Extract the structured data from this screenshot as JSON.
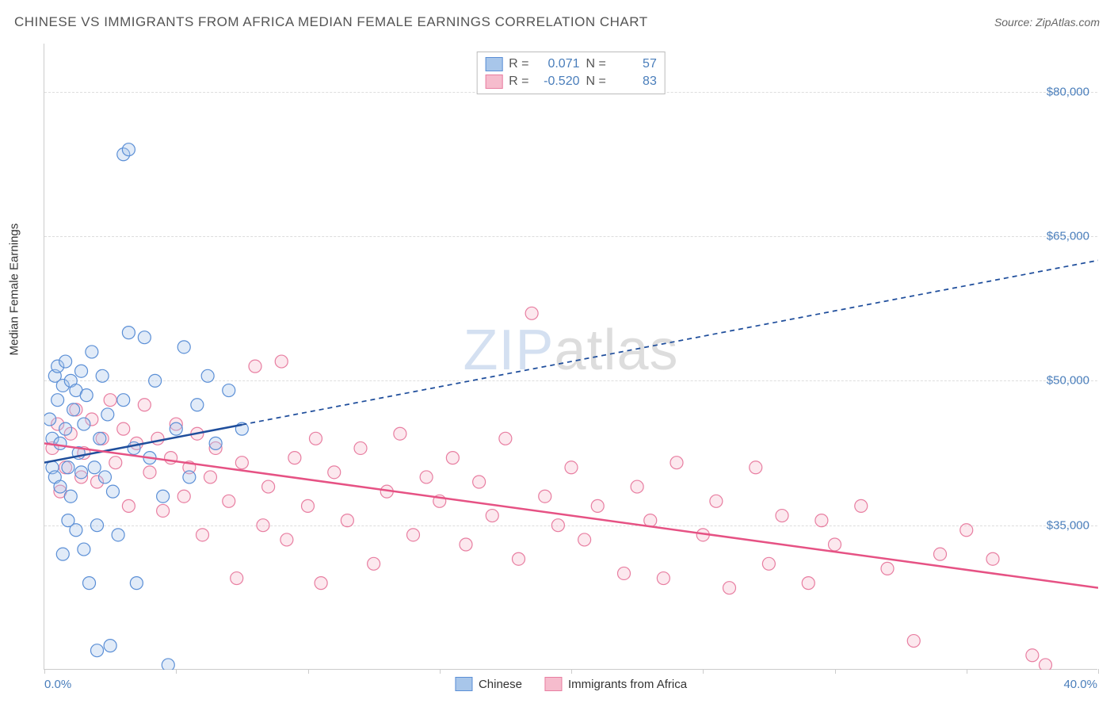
{
  "header": {
    "title": "CHINESE VS IMMIGRANTS FROM AFRICA MEDIAN FEMALE EARNINGS CORRELATION CHART",
    "source": "Source: ZipAtlas.com"
  },
  "axes": {
    "y_title": "Median Female Earnings",
    "x_min_label": "0.0%",
    "x_max_label": "40.0%",
    "xlim": [
      0,
      40
    ],
    "ylim": [
      20000,
      85000
    ],
    "y_ticks": [
      35000,
      50000,
      65000,
      80000
    ],
    "y_tick_labels": [
      "$35,000",
      "$50,000",
      "$65,000",
      "$80,000"
    ],
    "x_ticks": [
      0,
      5,
      10,
      15,
      20,
      25,
      30,
      35,
      40
    ],
    "grid_color": "#dddddd",
    "border_color": "#cccccc",
    "label_color": "#4a7ebb",
    "label_fontsize": 15,
    "axis_title_fontsize": 15
  },
  "watermark": {
    "zip": "ZIP",
    "atlas": "atlas",
    "fontsize": 72
  },
  "series": {
    "a": {
      "label": "Chinese",
      "color_stroke": "#5b8fd6",
      "color_fill": "#a8c6ea",
      "r_value": "0.071",
      "n_value": "57",
      "marker_radius": 8,
      "trend": {
        "x1": 0,
        "y1": 41500,
        "x2": 40,
        "y2": 62500,
        "solid_until_x": 7.5,
        "color": "#1f4e9c",
        "width": 2.5
      },
      "points": [
        [
          0.2,
          46000
        ],
        [
          0.3,
          41000
        ],
        [
          0.3,
          44000
        ],
        [
          0.4,
          50500
        ],
        [
          0.4,
          40000
        ],
        [
          0.5,
          48000
        ],
        [
          0.5,
          51500
        ],
        [
          0.6,
          39000
        ],
        [
          0.6,
          43500
        ],
        [
          0.7,
          32000
        ],
        [
          0.7,
          49500
        ],
        [
          0.8,
          45000
        ],
        [
          0.8,
          52000
        ],
        [
          0.9,
          35500
        ],
        [
          0.9,
          41000
        ],
        [
          1.0,
          50000
        ],
        [
          1.0,
          38000
        ],
        [
          1.1,
          47000
        ],
        [
          1.2,
          34500
        ],
        [
          1.2,
          49000
        ],
        [
          1.3,
          42500
        ],
        [
          1.4,
          51000
        ],
        [
          1.4,
          40500
        ],
        [
          1.5,
          32500
        ],
        [
          1.5,
          45500
        ],
        [
          1.6,
          48500
        ],
        [
          1.7,
          29000
        ],
        [
          1.8,
          53000
        ],
        [
          1.9,
          41000
        ],
        [
          2.0,
          22000
        ],
        [
          2.0,
          35000
        ],
        [
          2.1,
          44000
        ],
        [
          2.2,
          50500
        ],
        [
          2.3,
          40000
        ],
        [
          2.4,
          46500
        ],
        [
          2.5,
          22500
        ],
        [
          2.6,
          38500
        ],
        [
          2.8,
          34000
        ],
        [
          3.0,
          73500
        ],
        [
          3.2,
          74000
        ],
        [
          3.0,
          48000
        ],
        [
          3.2,
          55000
        ],
        [
          3.4,
          43000
        ],
        [
          3.5,
          29000
        ],
        [
          3.8,
          54500
        ],
        [
          4.0,
          42000
        ],
        [
          4.2,
          50000
        ],
        [
          4.5,
          38000
        ],
        [
          4.7,
          20500
        ],
        [
          5.0,
          45000
        ],
        [
          5.3,
          53500
        ],
        [
          5.5,
          40000
        ],
        [
          5.8,
          47500
        ],
        [
          6.2,
          50500
        ],
        [
          6.5,
          43500
        ],
        [
          7.0,
          49000
        ],
        [
          7.5,
          45000
        ]
      ]
    },
    "b": {
      "label": "Immigrants from Africa",
      "color_stroke": "#e87ea1",
      "color_fill": "#f6bccd",
      "r_value": "-0.520",
      "n_value": "83",
      "marker_radius": 8,
      "trend": {
        "x1": 0,
        "y1": 43500,
        "x2": 40,
        "y2": 28500,
        "color": "#e65284",
        "width": 2.5
      },
      "points": [
        [
          0.3,
          43000
        ],
        [
          0.5,
          45500
        ],
        [
          0.6,
          38500
        ],
        [
          0.8,
          41000
        ],
        [
          1.0,
          44500
        ],
        [
          1.2,
          47000
        ],
        [
          1.4,
          40000
        ],
        [
          1.5,
          42500
        ],
        [
          1.8,
          46000
        ],
        [
          2.0,
          39500
        ],
        [
          2.2,
          44000
        ],
        [
          2.5,
          48000
        ],
        [
          2.7,
          41500
        ],
        [
          3.0,
          45000
        ],
        [
          3.2,
          37000
        ],
        [
          3.5,
          43500
        ],
        [
          3.8,
          47500
        ],
        [
          4.0,
          40500
        ],
        [
          4.3,
          44000
        ],
        [
          4.5,
          36500
        ],
        [
          4.8,
          42000
        ],
        [
          5.0,
          45500
        ],
        [
          5.3,
          38000
        ],
        [
          5.5,
          41000
        ],
        [
          5.8,
          44500
        ],
        [
          6.0,
          34000
        ],
        [
          6.3,
          40000
        ],
        [
          6.5,
          43000
        ],
        [
          7.0,
          37500
        ],
        [
          7.3,
          29500
        ],
        [
          7.5,
          41500
        ],
        [
          8.0,
          51500
        ],
        [
          8.3,
          35000
        ],
        [
          8.5,
          39000
        ],
        [
          9.0,
          52000
        ],
        [
          9.2,
          33500
        ],
        [
          9.5,
          42000
        ],
        [
          10.0,
          37000
        ],
        [
          10.3,
          44000
        ],
        [
          10.5,
          29000
        ],
        [
          11.0,
          40500
        ],
        [
          11.5,
          35500
        ],
        [
          12.0,
          43000
        ],
        [
          12.5,
          31000
        ],
        [
          13.0,
          38500
        ],
        [
          13.5,
          44500
        ],
        [
          14.0,
          34000
        ],
        [
          14.5,
          40000
        ],
        [
          15.0,
          37500
        ],
        [
          15.5,
          42000
        ],
        [
          16.0,
          33000
        ],
        [
          16.5,
          39500
        ],
        [
          17.0,
          36000
        ],
        [
          17.5,
          44000
        ],
        [
          18.0,
          31500
        ],
        [
          18.5,
          57000
        ],
        [
          19.0,
          38000
        ],
        [
          19.5,
          35000
        ],
        [
          20.0,
          41000
        ],
        [
          20.5,
          33500
        ],
        [
          21.0,
          37000
        ],
        [
          22.0,
          30000
        ],
        [
          22.5,
          39000
        ],
        [
          23.0,
          35500
        ],
        [
          23.5,
          29500
        ],
        [
          24.0,
          41500
        ],
        [
          25.0,
          34000
        ],
        [
          25.5,
          37500
        ],
        [
          26.0,
          28500
        ],
        [
          27.0,
          41000
        ],
        [
          27.5,
          31000
        ],
        [
          28.0,
          36000
        ],
        [
          29.0,
          29000
        ],
        [
          29.5,
          35500
        ],
        [
          30.0,
          33000
        ],
        [
          31.0,
          37000
        ],
        [
          32.0,
          30500
        ],
        [
          33.0,
          23000
        ],
        [
          34.0,
          32000
        ],
        [
          35.0,
          34500
        ],
        [
          36.0,
          31500
        ],
        [
          37.5,
          21500
        ],
        [
          38.0,
          20500
        ]
      ]
    }
  },
  "legend": {
    "swatch_w": 22,
    "swatch_h": 18
  },
  "stats_labels": {
    "r": "R =",
    "n": "N ="
  }
}
